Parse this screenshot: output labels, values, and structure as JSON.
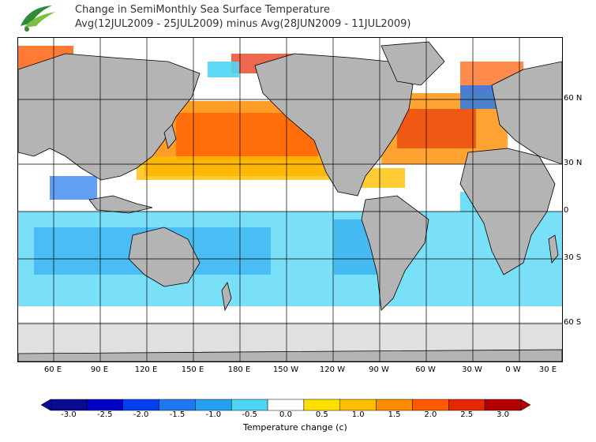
{
  "header": {
    "title_line1": "Change in SemiMonthly Sea Surface Temperature",
    "title_line2": "Avg(12JUL2009 - 25JUL2009) minus Avg(28JUN2009 - 11JUL2009)"
  },
  "logo": {
    "name": "agency-logo"
  },
  "map": {
    "lat_labels": [
      "60 N",
      "30 N",
      "0",
      "30 S",
      "60 S"
    ],
    "lon_labels": [
      "60 E",
      "90 E",
      "120 E",
      "150 E",
      "180 E",
      "150 W",
      "120 W",
      "90 W",
      "60 W",
      "30 W",
      "0 W",
      "30 E"
    ]
  },
  "colorbar": {
    "ticks": [
      "-3.0",
      "-2.5",
      "-2.0",
      "-1.5",
      "-1.0",
      "-0.5",
      "0.0",
      "0.5",
      "1.0",
      "1.5",
      "2.0",
      "2.5",
      "3.0"
    ],
    "label": "Temperature change  (c)",
    "colors": [
      "#0a0a90",
      "#0000c8",
      "#0040f0",
      "#1e78f0",
      "#23a0f0",
      "#4ed6f5",
      "#ffffff",
      "#ffe000",
      "#ffbf00",
      "#ff8c00",
      "#ff5a00",
      "#e62800",
      "#b40000"
    ]
  }
}
